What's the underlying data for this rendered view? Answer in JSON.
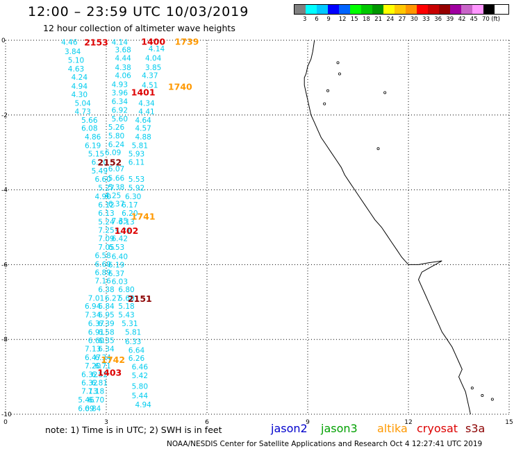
{
  "title": "12:00 – 23:59 UTC 10/03/2019",
  "subtitle": "12 hour collection of altimeter wave heights",
  "colorbar": {
    "colors": [
      "#808080",
      "#00ffff",
      "#00c8ff",
      "#0000ff",
      "#0064ff",
      "#00ff00",
      "#00c800",
      "#009600",
      "#ffff00",
      "#ffc800",
      "#ff9600",
      "#ff0000",
      "#c80000",
      "#960000",
      "#a000a0",
      "#c864c8",
      "#ff96ff",
      "#000000"
    ],
    "labels": [
      "3",
      "6",
      "9",
      "12",
      "15",
      "18",
      "21",
      "24",
      "27",
      "30",
      "33",
      "36",
      "39",
      "42",
      "45",
      "70",
      "(ft)"
    ]
  },
  "axes": {
    "x_ticks": [
      "0",
      "3",
      "6",
      "9",
      "12",
      "15"
    ],
    "y_ticks": [
      "0",
      "-2",
      "-4",
      "-6",
      "-8",
      "-10"
    ],
    "xlim": [
      0,
      15
    ],
    "ylim": [
      -10,
      0
    ]
  },
  "chart_data": {
    "type": "scatter",
    "title": "12:00 – 23:59 UTC 10/03/2019",
    "xlim": [
      0,
      15
    ],
    "ylim": [
      -10,
      0
    ],
    "grid": true,
    "wave_heights_ft": [
      {
        "x": 1.9,
        "y": -0.05,
        "v": "4.46"
      },
      {
        "x": 3.4,
        "y": -0.05,
        "v": "4.14"
      },
      {
        "x": 2.0,
        "y": -0.3,
        "v": "3.84"
      },
      {
        "x": 3.5,
        "y": -0.25,
        "v": "3.68"
      },
      {
        "x": 4.5,
        "y": -0.22,
        "v": "4.14"
      },
      {
        "x": 2.1,
        "y": -0.53,
        "v": "5.10"
      },
      {
        "x": 3.5,
        "y": -0.47,
        "v": "4.44"
      },
      {
        "x": 4.4,
        "y": -0.47,
        "v": "4.04"
      },
      {
        "x": 2.1,
        "y": -0.76,
        "v": "4.63"
      },
      {
        "x": 3.5,
        "y": -0.72,
        "v": "4.38"
      },
      {
        "x": 4.4,
        "y": -0.72,
        "v": "3.85"
      },
      {
        "x": 2.2,
        "y": -0.98,
        "v": "4.24"
      },
      {
        "x": 3.5,
        "y": -0.94,
        "v": "4.06"
      },
      {
        "x": 4.3,
        "y": -0.94,
        "v": "4.37"
      },
      {
        "x": 2.2,
        "y": -1.22,
        "v": "4.94"
      },
      {
        "x": 3.4,
        "y": -1.18,
        "v": "4.93"
      },
      {
        "x": 4.3,
        "y": -1.2,
        "v": "4.51"
      },
      {
        "x": 2.2,
        "y": -1.45,
        "v": "4.30"
      },
      {
        "x": 3.4,
        "y": -1.4,
        "v": "3.96"
      },
      {
        "x": 2.3,
        "y": -1.68,
        "v": "5.04"
      },
      {
        "x": 3.4,
        "y": -1.63,
        "v": "6.34"
      },
      {
        "x": 4.2,
        "y": -1.68,
        "v": "4.34"
      },
      {
        "x": 2.3,
        "y": -1.9,
        "v": "4.73"
      },
      {
        "x": 3.4,
        "y": -1.86,
        "v": "6.92"
      },
      {
        "x": 4.2,
        "y": -1.9,
        "v": "4.41"
      },
      {
        "x": 2.5,
        "y": -2.13,
        "v": "5.66"
      },
      {
        "x": 3.4,
        "y": -2.1,
        "v": "5.60"
      },
      {
        "x": 4.1,
        "y": -2.13,
        "v": "4.64"
      },
      {
        "x": 2.5,
        "y": -2.35,
        "v": "6.08"
      },
      {
        "x": 3.3,
        "y": -2.32,
        "v": "5.26"
      },
      {
        "x": 4.1,
        "y": -2.35,
        "v": "4.57"
      },
      {
        "x": 2.6,
        "y": -2.58,
        "v": "4.86"
      },
      {
        "x": 3.3,
        "y": -2.55,
        "v": "5.80"
      },
      {
        "x": 4.1,
        "y": -2.58,
        "v": "4.88"
      },
      {
        "x": 2.6,
        "y": -2.81,
        "v": "6.19"
      },
      {
        "x": 3.3,
        "y": -2.78,
        "v": "6.24"
      },
      {
        "x": 4.0,
        "y": -2.81,
        "v": "5.81"
      },
      {
        "x": 2.7,
        "y": -3.03,
        "v": "5.15"
      },
      {
        "x": 3.2,
        "y": -3.0,
        "v": "6.09"
      },
      {
        "x": 3.9,
        "y": -3.03,
        "v": "5.93"
      },
      {
        "x": 2.8,
        "y": -3.26,
        "v": "6.20"
      },
      {
        "x": 3.9,
        "y": -3.26,
        "v": "6.11"
      },
      {
        "x": 2.8,
        "y": -3.49,
        "v": "5.49"
      },
      {
        "x": 3.3,
        "y": -3.43,
        "v": "6.07"
      },
      {
        "x": 2.9,
        "y": -3.71,
        "v": "6.60"
      },
      {
        "x": 3.3,
        "y": -3.68,
        "v": "5.66"
      },
      {
        "x": 3.9,
        "y": -3.71,
        "v": "5.53"
      },
      {
        "x": 3.0,
        "y": -3.94,
        "v": "5.27"
      },
      {
        "x": 3.3,
        "y": -3.92,
        "v": "5.38"
      },
      {
        "x": 3.9,
        "y": -3.94,
        "v": "5.92"
      },
      {
        "x": 2.9,
        "y": -4.17,
        "v": "4.90"
      },
      {
        "x": 3.2,
        "y": -4.15,
        "v": "4.25"
      },
      {
        "x": 3.8,
        "y": -4.17,
        "v": "6.30"
      },
      {
        "x": 3.0,
        "y": -4.4,
        "v": "6.12"
      },
      {
        "x": 3.3,
        "y": -4.37,
        "v": "6.37"
      },
      {
        "x": 3.7,
        "y": -4.4,
        "v": "6.17"
      },
      {
        "x": 3.0,
        "y": -4.62,
        "v": "6.13"
      },
      {
        "x": 3.7,
        "y": -4.62,
        "v": "6.20"
      },
      {
        "x": 3.0,
        "y": -4.85,
        "v": "5.24"
      },
      {
        "x": 3.4,
        "y": -4.82,
        "v": "7.35"
      },
      {
        "x": 3.6,
        "y": -4.85,
        "v": "6.13"
      },
      {
        "x": 3.0,
        "y": -5.07,
        "v": "7.25"
      },
      {
        "x": 3.5,
        "y": -5.1,
        "v": "5.71"
      },
      {
        "x": 3.0,
        "y": -5.3,
        "v": "7.09"
      },
      {
        "x": 3.4,
        "y": -5.3,
        "v": "6.42"
      },
      {
        "x": 3.0,
        "y": -5.53,
        "v": "7.05"
      },
      {
        "x": 3.3,
        "y": -5.53,
        "v": "6.53"
      },
      {
        "x": 2.9,
        "y": -5.75,
        "v": "6.58"
      },
      {
        "x": 3.4,
        "y": -5.78,
        "v": "6.40"
      },
      {
        "x": 2.9,
        "y": -5.98,
        "v": "6.60"
      },
      {
        "x": 3.3,
        "y": -6.0,
        "v": "6.19"
      },
      {
        "x": 2.9,
        "y": -6.21,
        "v": "6.89"
      },
      {
        "x": 3.3,
        "y": -6.23,
        "v": "6.37"
      },
      {
        "x": 2.9,
        "y": -6.43,
        "v": "7.16"
      },
      {
        "x": 3.4,
        "y": -6.45,
        "v": "6.03"
      },
      {
        "x": 3.0,
        "y": -6.66,
        "v": "6.38"
      },
      {
        "x": 3.6,
        "y": -6.66,
        "v": "6.80"
      },
      {
        "x": 2.7,
        "y": -6.89,
        "v": "7.01"
      },
      {
        "x": 3.2,
        "y": -6.89,
        "v": "6.27"
      },
      {
        "x": 3.6,
        "y": -6.89,
        "v": "5.60"
      },
      {
        "x": 2.6,
        "y": -7.11,
        "v": "6.94"
      },
      {
        "x": 3.0,
        "y": -7.11,
        "v": "6.84"
      },
      {
        "x": 3.6,
        "y": -7.11,
        "v": "5.18"
      },
      {
        "x": 2.6,
        "y": -7.34,
        "v": "7.34"
      },
      {
        "x": 3.0,
        "y": -7.34,
        "v": "6.95"
      },
      {
        "x": 3.6,
        "y": -7.34,
        "v": "5.43"
      },
      {
        "x": 2.7,
        "y": -7.57,
        "v": "6.37"
      },
      {
        "x": 3.0,
        "y": -7.57,
        "v": "6.39"
      },
      {
        "x": 3.7,
        "y": -7.57,
        "v": "5.31"
      },
      {
        "x": 2.7,
        "y": -7.8,
        "v": "6.91"
      },
      {
        "x": 3.0,
        "y": -7.8,
        "v": "6.58"
      },
      {
        "x": 3.8,
        "y": -7.8,
        "v": "5.81"
      },
      {
        "x": 2.7,
        "y": -8.02,
        "v": "6.60"
      },
      {
        "x": 3.0,
        "y": -8.02,
        "v": "6.35"
      },
      {
        "x": 3.8,
        "y": -8.05,
        "v": "6.33"
      },
      {
        "x": 2.6,
        "y": -8.25,
        "v": "7.13"
      },
      {
        "x": 3.0,
        "y": -8.25,
        "v": "6.34"
      },
      {
        "x": 3.9,
        "y": -8.28,
        "v": "6.64"
      },
      {
        "x": 2.6,
        "y": -8.48,
        "v": "6.47"
      },
      {
        "x": 2.9,
        "y": -8.48,
        "v": "6.34"
      },
      {
        "x": 3.9,
        "y": -8.5,
        "v": "6.26"
      },
      {
        "x": 2.6,
        "y": -8.7,
        "v": "7.20"
      },
      {
        "x": 2.9,
        "y": -8.7,
        "v": "6.71"
      },
      {
        "x": 4.0,
        "y": -8.73,
        "v": "6.46"
      },
      {
        "x": 2.5,
        "y": -8.93,
        "v": "6.32"
      },
      {
        "x": 2.8,
        "y": -8.93,
        "v": "6.52"
      },
      {
        "x": 4.0,
        "y": -8.96,
        "v": "5.42"
      },
      {
        "x": 2.5,
        "y": -9.16,
        "v": "6.32"
      },
      {
        "x": 2.8,
        "y": -9.16,
        "v": "6.81"
      },
      {
        "x": 2.5,
        "y": -9.38,
        "v": "7.13"
      },
      {
        "x": 2.7,
        "y": -9.38,
        "v": "7.18"
      },
      {
        "x": 4.0,
        "y": -9.25,
        "v": "5.80"
      },
      {
        "x": 2.4,
        "y": -9.61,
        "v": "5.46"
      },
      {
        "x": 2.7,
        "y": -9.61,
        "v": "6.70"
      },
      {
        "x": 4.0,
        "y": -9.5,
        "v": "5.44"
      },
      {
        "x": 2.4,
        "y": -9.84,
        "v": "6.09"
      },
      {
        "x": 2.6,
        "y": -9.84,
        "v": "6.84"
      },
      {
        "x": 4.1,
        "y": -9.74,
        "v": "4.94"
      }
    ],
    "track_times": [
      {
        "x": 2.7,
        "y": -0.05,
        "label": "2153",
        "mission": "cryosat"
      },
      {
        "x": 4.4,
        "y": -0.03,
        "label": "1400",
        "mission": "cryosat"
      },
      {
        "x": 5.4,
        "y": -0.03,
        "label": "1739",
        "mission": "altika"
      },
      {
        "x": 5.2,
        "y": -1.23,
        "label": "1740",
        "mission": "altika"
      },
      {
        "x": 4.1,
        "y": -1.38,
        "label": "1401",
        "mission": "cryosat"
      },
      {
        "x": 3.1,
        "y": -3.26,
        "label": "2152",
        "mission": "s3a"
      },
      {
        "x": 4.1,
        "y": -4.7,
        "label": "1741",
        "mission": "altika"
      },
      {
        "x": 3.6,
        "y": -5.08,
        "label": "1402",
        "mission": "cryosat"
      },
      {
        "x": 4.0,
        "y": -6.9,
        "label": "2151",
        "mission": "s3a"
      },
      {
        "x": 3.2,
        "y": -8.53,
        "label": "1742",
        "mission": "altika"
      },
      {
        "x": 3.1,
        "y": -8.88,
        "label": "1403",
        "mission": "cryosat"
      }
    ]
  },
  "coastline": [
    [
      9.2,
      0.0
    ],
    [
      9.15,
      -0.3
    ],
    [
      9.1,
      -0.5
    ],
    [
      9.0,
      -0.7
    ],
    [
      8.95,
      -0.9
    ],
    [
      8.9,
      -1.0
    ],
    [
      8.9,
      -1.2
    ],
    [
      8.95,
      -1.4
    ],
    [
      9.0,
      -1.6
    ],
    [
      9.05,
      -1.8
    ],
    [
      9.1,
      -2.0
    ],
    [
      9.2,
      -2.2
    ],
    [
      9.3,
      -2.4
    ],
    [
      9.4,
      -2.6
    ],
    [
      9.55,
      -2.8
    ],
    [
      9.7,
      -3.0
    ],
    [
      9.85,
      -3.2
    ],
    [
      10.0,
      -3.4
    ],
    [
      10.1,
      -3.6
    ],
    [
      10.25,
      -3.8
    ],
    [
      10.4,
      -4.0
    ],
    [
      10.55,
      -4.2
    ],
    [
      10.7,
      -4.4
    ],
    [
      10.85,
      -4.6
    ],
    [
      11.0,
      -4.8
    ],
    [
      11.2,
      -5.0
    ],
    [
      11.35,
      -5.2
    ],
    [
      11.5,
      -5.4
    ],
    [
      11.65,
      -5.6
    ],
    [
      11.8,
      -5.8
    ],
    [
      12.0,
      -6.0
    ],
    [
      12.3,
      -6.0
    ],
    [
      12.6,
      -5.95
    ],
    [
      13.0,
      -5.9
    ],
    [
      12.7,
      -6.05
    ],
    [
      12.4,
      -6.2
    ],
    [
      12.3,
      -6.4
    ],
    [
      12.4,
      -6.6
    ],
    [
      12.5,
      -6.8
    ],
    [
      12.6,
      -7.0
    ],
    [
      12.7,
      -7.2
    ],
    [
      12.8,
      -7.4
    ],
    [
      12.9,
      -7.6
    ],
    [
      13.0,
      -7.8
    ],
    [
      13.15,
      -8.0
    ],
    [
      13.3,
      -8.2
    ],
    [
      13.4,
      -8.4
    ],
    [
      13.5,
      -8.6
    ],
    [
      13.6,
      -8.8
    ],
    [
      13.5,
      -9.0
    ],
    [
      13.6,
      -9.2
    ],
    [
      13.7,
      -9.4
    ],
    [
      13.75,
      -9.6
    ],
    [
      13.8,
      -9.8
    ],
    [
      13.85,
      -10.0
    ]
  ],
  "note": "note:  1) Time is in UTC;  2) SWH is in feet",
  "missions": [
    {
      "name": "jason2",
      "color": "#0000cc"
    },
    {
      "name": "jason3",
      "color": "#00a000"
    },
    {
      "name": "altika",
      "color": "#ff9900"
    },
    {
      "name": "cryosat",
      "color": "#dd0000"
    },
    {
      "name": "s3a",
      "color": "#8b0000"
    }
  ],
  "footer": "NOAA/NESDIS Center for Satellite Applications and Research    Oct  4 12:27:41 UTC 2019"
}
